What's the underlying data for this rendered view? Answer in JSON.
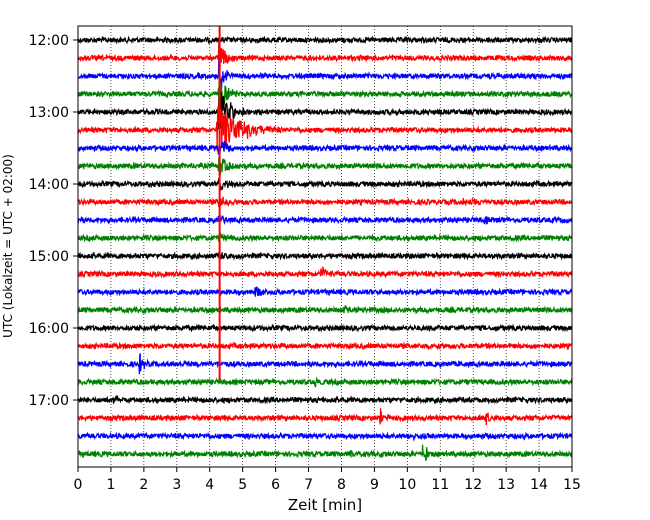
{
  "chart_data": {
    "type": "line",
    "title": "",
    "xlabel": "Zeit  [min]",
    "ylabel": "UTC (Lokalzeit = UTC + 02:00)",
    "xlim": [
      0,
      15
    ],
    "x_ticks": [
      "0",
      "1",
      "2",
      "3",
      "4",
      "5",
      "6",
      "7",
      "8",
      "9",
      "10",
      "11",
      "12",
      "13",
      "14",
      "15"
    ],
    "y_ticks": [
      "12:00",
      "13:00",
      "14:00",
      "15:00",
      "16:00",
      "17:00"
    ],
    "vertical_gridlines": true,
    "trace_interval_minutes": 15,
    "trace_colors": [
      "#000000",
      "#ff0000",
      "#0000ff",
      "#008000"
    ],
    "traces": [
      {
        "start": "12:00",
        "events": []
      },
      {
        "start": "12:15",
        "events": [
          {
            "t": 4.3,
            "amp": 2.2,
            "dur": 0.15
          }
        ]
      },
      {
        "start": "12:30",
        "events": [
          {
            "t": 4.3,
            "amp": 2.2,
            "dur": 0.15
          }
        ]
      },
      {
        "start": "12:45",
        "events": [
          {
            "t": 4.3,
            "amp": 2.4,
            "dur": 0.2
          }
        ]
      },
      {
        "start": "13:00",
        "events": [
          {
            "t": 4.3,
            "amp": 2.6,
            "dur": 0.3
          }
        ]
      },
      {
        "start": "13:15",
        "events": [
          {
            "t": 4.25,
            "amp": 2.8,
            "dur": 0.7
          }
        ]
      },
      {
        "start": "13:30",
        "events": [
          {
            "t": 4.3,
            "amp": 1.2,
            "dur": 0.25
          }
        ]
      },
      {
        "start": "13:45",
        "events": [
          {
            "t": 4.3,
            "amp": 1.2,
            "dur": 0.25
          }
        ]
      },
      {
        "start": "14:00",
        "events": [
          {
            "t": 4.3,
            "amp": 1.0,
            "dur": 0.2
          }
        ]
      },
      {
        "start": "14:15",
        "events": [
          {
            "t": 4.3,
            "amp": 0.8,
            "dur": 0.15
          },
          {
            "t": 11.7,
            "amp": 0.5,
            "dur": 0.3
          }
        ]
      },
      {
        "start": "14:30",
        "events": [
          {
            "t": 4.3,
            "amp": 0.6,
            "dur": 0.1
          },
          {
            "t": 12.3,
            "amp": 0.4,
            "dur": 0.2
          }
        ]
      },
      {
        "start": "14:45",
        "events": [
          {
            "t": 4.3,
            "amp": 0.5,
            "dur": 0.1
          }
        ]
      },
      {
        "start": "15:00",
        "events": [
          {
            "t": 4.3,
            "amp": 0.5,
            "dur": 0.1
          }
        ]
      },
      {
        "start": "15:15",
        "events": [
          {
            "t": 7.4,
            "amp": 0.7,
            "dur": 0.15
          }
        ]
      },
      {
        "start": "15:30",
        "events": [
          {
            "t": 5.4,
            "amp": 0.5,
            "dur": 0.2
          }
        ]
      },
      {
        "start": "15:45",
        "events": [
          {
            "t": 8.1,
            "amp": 0.4,
            "dur": 0.2
          }
        ]
      },
      {
        "start": "16:00",
        "events": []
      },
      {
        "start": "16:15",
        "events": []
      },
      {
        "start": "16:30",
        "events": [
          {
            "t": 1.9,
            "amp": 1.0,
            "dur": 0.1
          }
        ]
      },
      {
        "start": "16:45",
        "events": [
          {
            "t": 7.2,
            "amp": 0.4,
            "dur": 0.1
          }
        ]
      },
      {
        "start": "17:00",
        "events": [
          {
            "t": 1.1,
            "amp": 0.6,
            "dur": 0.15
          }
        ]
      },
      {
        "start": "17:15",
        "events": [
          {
            "t": 9.2,
            "amp": 0.9,
            "dur": 0.15
          },
          {
            "t": 12.4,
            "amp": 0.7,
            "dur": 0.1
          }
        ]
      },
      {
        "start": "17:30",
        "events": [
          {
            "t": 10.0,
            "amp": 0.5,
            "dur": 0.15
          }
        ]
      },
      {
        "start": "17:45",
        "events": [
          {
            "t": 10.5,
            "amp": 1.6,
            "dur": 0.1
          },
          {
            "t": 8.3,
            "amp": 0.4,
            "dur": 0.1
          }
        ]
      }
    ],
    "vertical_spike": {
      "t": 4.3,
      "color": "#ff0000",
      "from": "11:45",
      "to": "16:45"
    }
  }
}
